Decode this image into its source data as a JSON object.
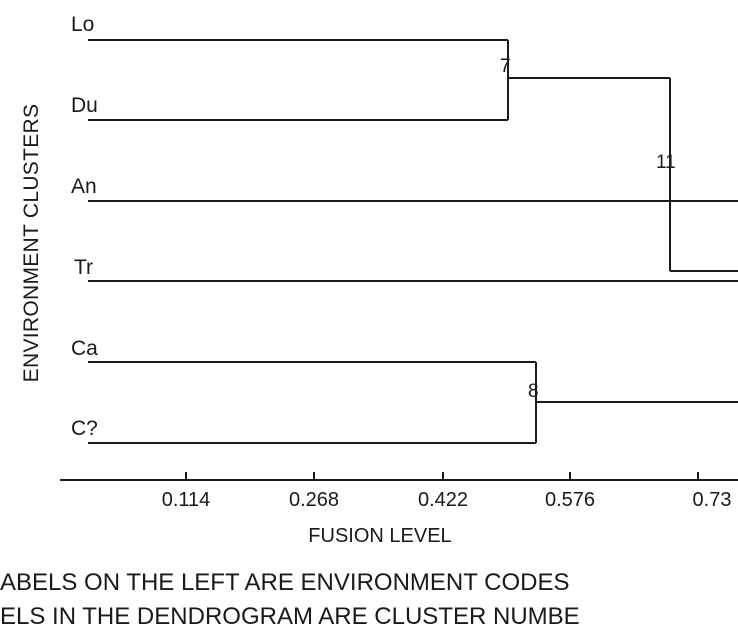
{
  "dendrogram": {
    "ylabel": "ENVIRONMENT CLUSTERS",
    "xlabel": "FUSION LEVEL",
    "leaves": [
      "Lo",
      "Du",
      "An",
      "Tr",
      "Ca",
      "C?"
    ],
    "ticks": [
      "0.114",
      "0.268",
      "0.422",
      "0.576",
      "0.73"
    ],
    "nodes": [
      {
        "label": "7",
        "merges": [
          "Lo",
          "Du"
        ]
      },
      {
        "label": "8",
        "merges": [
          "Ca",
          "C?"
        ]
      },
      {
        "label": "11",
        "merges": [
          "7",
          "Tr"
        ]
      }
    ]
  },
  "notes": [
    "ABELS ON THE LEFT ARE ENVIRONMENT CODES",
    "ELS IN THE DENDROGRAM ARE CLUSTER NUMBE"
  ]
}
